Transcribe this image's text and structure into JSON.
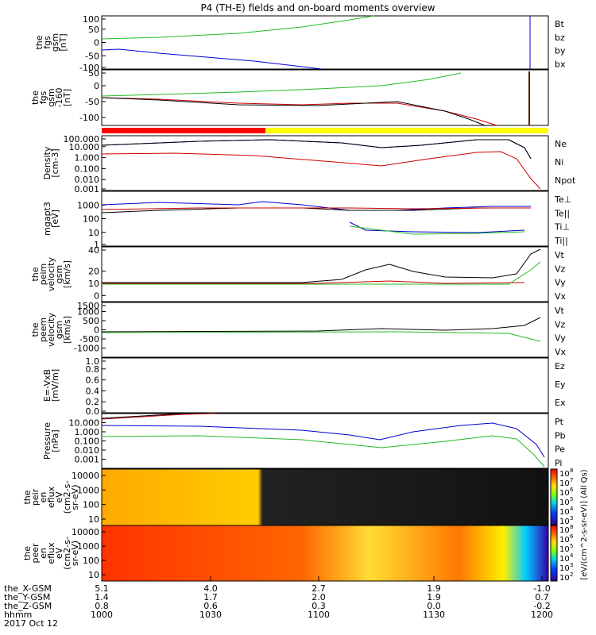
{
  "chart_data": {
    "type": "line",
    "title": "P4 (TH-E) fields and on-board moments overview",
    "panels": [
      {
        "label": [
          "the",
          "fgs",
          "gsm",
          "[nT]"
        ],
        "ylim": [
          -100,
          100
        ],
        "yticks": [
          "100",
          "50",
          "0",
          "-50",
          "-100"
        ],
        "tickvals": [
          100,
          50,
          0,
          -50,
          -100
        ],
        "legend": [
          {
            "name": "Bt",
            "color": "#000000"
          },
          {
            "name": "bz",
            "color": "#cc0000"
          },
          {
            "name": "by",
            "color": "#22bb22"
          },
          {
            "name": "bx",
            "color": "#0000cc"
          }
        ]
      },
      {
        "label": [
          "the",
          "fgs",
          "gsm",
          "-160",
          "[nT]"
        ],
        "ylim": [
          -125,
          50
        ],
        "yticks": [
          "50",
          "0",
          "-50",
          "-100"
        ],
        "tickvals": [
          50,
          0,
          -50,
          -100
        ],
        "legend": []
      },
      {
        "label": [
          "Density",
          "[cm-3]"
        ],
        "ylim": [
          0.001,
          100
        ],
        "yticks": [
          "100.000",
          "10.000",
          "1.000",
          "0.100",
          "0.010",
          "0.001"
        ],
        "tickvals": [
          100,
          10,
          1,
          0.1,
          0.01,
          0.001
        ],
        "legend": [
          {
            "name": "Ne",
            "color": "#cc0000"
          },
          {
            "name": "Ni",
            "color": "#000000"
          },
          {
            "name": "Npot",
            "color": "#0000cc"
          }
        ]
      },
      {
        "label": [
          "mgapt3",
          "[eV]"
        ],
        "ylim": [
          1,
          10000
        ],
        "yticks": [
          "1000",
          "100",
          "10",
          "1"
        ],
        "tickvals": [
          1000,
          100,
          10,
          1
        ],
        "legend": [
          {
            "name": "Te⊥",
            "color": "#cc0000"
          },
          {
            "name": "Te||",
            "color": "#000000"
          },
          {
            "name": "Ti⊥",
            "color": "#0000cc"
          },
          {
            "name": "Ti||",
            "color": "#22bb22"
          }
        ]
      },
      {
        "label": [
          "the",
          "peim",
          "velocity",
          "gsm",
          "[km/s]"
        ],
        "ylim": [
          -5,
          40
        ],
        "yticks": [
          "40",
          "20",
          "10",
          "0"
        ],
        "tickvals": [
          40,
          20,
          10,
          0
        ],
        "legend": [
          {
            "name": "Vt",
            "color": "#000000"
          },
          {
            "name": "Vz",
            "color": "#cc0000"
          },
          {
            "name": "Vy",
            "color": "#22bb22"
          },
          {
            "name": "Vx",
            "color": "#0000cc"
          }
        ]
      },
      {
        "label": [
          "the",
          "peem",
          "velocity",
          "gsm",
          "[km/s]"
        ],
        "ylim": [
          -1500,
          1500
        ],
        "yticks": [
          "1500",
          "1000",
          "500",
          "0",
          "-500",
          "-1000"
        ],
        "tickvals": [
          1500,
          1000,
          500,
          0,
          -500,
          -1000
        ],
        "legend": [
          {
            "name": "Vt",
            "color": "#000000"
          },
          {
            "name": "Vz",
            "color": "#cc0000"
          },
          {
            "name": "Vy",
            "color": "#22bb22"
          },
          {
            "name": "Vx",
            "color": "#0000cc"
          }
        ]
      },
      {
        "label": [
          "E=-VxB",
          "[mV/m]"
        ],
        "ylim": [
          0,
          1
        ],
        "yticks": [
          "1.0",
          "0.8",
          "0.6",
          "0.4",
          "0.2",
          "0.0"
        ],
        "tickvals": [
          1.0,
          0.8,
          0.6,
          0.4,
          0.2,
          0.0
        ],
        "legend": [
          {
            "name": "Ez",
            "color": "#cc0000"
          },
          {
            "name": "Ey",
            "color": "#22bb22"
          },
          {
            "name": "Ex",
            "color": "#0000cc"
          }
        ]
      },
      {
        "label": [
          "Pressure",
          "[nPa]"
        ],
        "ylim": [
          0.0001,
          100
        ],
        "yticks": [
          "10.000",
          "1.000",
          "0.100",
          "0.010",
          "0.001"
        ],
        "tickvals": [
          10,
          1,
          0.1,
          0.01,
          0.001
        ],
        "legend": [
          {
            "name": "Pt",
            "color": "#000000"
          },
          {
            "name": "Pb",
            "color": "#cc0000"
          },
          {
            "name": "Pe",
            "color": "#22bb22"
          },
          {
            "name": "Pi",
            "color": "#0000cc"
          }
        ]
      },
      {
        "label": [
          "the",
          "peir",
          "en",
          "eflux",
          "eV",
          "(cm2-s-",
          "sr-eV)"
        ],
        "yticks": [
          "10000",
          "1000",
          "100",
          "10"
        ],
        "legend": []
      },
      {
        "label": [
          "the",
          "peer",
          "en",
          "eflux",
          "eV",
          "(cm2-s-",
          "sr-eV)"
        ],
        "yticks": [
          "10000",
          "1000",
          "100",
          "10"
        ],
        "legend": []
      }
    ],
    "colorbar_labels_top": [
      "10",
      "10",
      "10",
      "10",
      "10",
      "10"
    ],
    "colorbar_exponents_top": [
      "8",
      "7",
      "6",
      "5",
      "4",
      "3"
    ],
    "colorbar_labels_bottom": [
      "10",
      "10",
      "10",
      "10",
      "10",
      "10"
    ],
    "colorbar_exponents_bottom": [
      "8",
      "6",
      "5",
      "4",
      "3",
      "2"
    ],
    "colorbar_title": "[eV/(cm^2-s-sr-eV)] (All Qs)",
    "time_axis": {
      "row_labels": [
        "the_X-GSM",
        "the_Y-GSM",
        "the_Z-GSM",
        "hhmm",
        "2017 Oct 12"
      ],
      "columns": [
        {
          "x": "5.1",
          "y": "1.4",
          "z": "0.8",
          "hhmm": "1000"
        },
        {
          "x": "4.0",
          "y": "1.7",
          "z": "0.6",
          "hhmm": "1030"
        },
        {
          "x": "2.7",
          "y": "2.0",
          "z": "0.3",
          "hhmm": "1100"
        },
        {
          "x": "1.9",
          "y": "1.9",
          "z": "0.0",
          "hhmm": "1130"
        },
        {
          "x": "-1.0",
          "y": "0.7",
          "z": "-0.2",
          "hhmm": "1200"
        }
      ]
    }
  }
}
